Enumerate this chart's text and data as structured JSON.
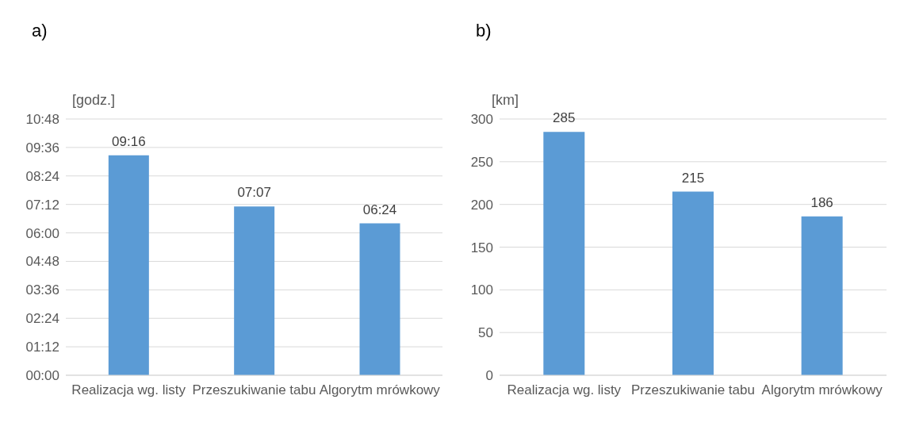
{
  "chart_data": [
    {
      "type": "bar",
      "title": "a)",
      "ylabel": "[godz.]",
      "categories": [
        "Realizacja wg. listy",
        "Przeszukiwanie tabu",
        "Algorytm mrówkowy"
      ],
      "values": [
        9.2667,
        7.1167,
        6.4
      ],
      "value_labels": [
        "09:16",
        "07:07",
        "06:24"
      ],
      "color": "#5b9bd5",
      "ylim": [
        0,
        10.8
      ],
      "yticks": [
        {
          "value": 0,
          "label": "00:00"
        },
        {
          "value": 1.2,
          "label": "01:12"
        },
        {
          "value": 2.4,
          "label": "02:24"
        },
        {
          "value": 3.6,
          "label": "03:36"
        },
        {
          "value": 4.8,
          "label": "04:48"
        },
        {
          "value": 6,
          "label": "06:00"
        },
        {
          "value": 7.2,
          "label": "07:12"
        },
        {
          "value": 8.4,
          "label": "08:24"
        },
        {
          "value": 9.6,
          "label": "09:36"
        },
        {
          "value": 10.8,
          "label": "10:48"
        }
      ],
      "grid": "y"
    },
    {
      "type": "bar",
      "title": "b)",
      "ylabel": "[km]",
      "categories": [
        "Realizacja wg. listy",
        "Przeszukiwanie tabu",
        "Algorytm mrówkowy"
      ],
      "values": [
        285,
        215,
        186
      ],
      "data_labels": true,
      "color": "#5b9bd5",
      "ylim": [
        0,
        300
      ],
      "yticks": [
        0,
        50,
        100,
        150,
        200,
        250,
        300
      ],
      "grid": "y"
    }
  ]
}
